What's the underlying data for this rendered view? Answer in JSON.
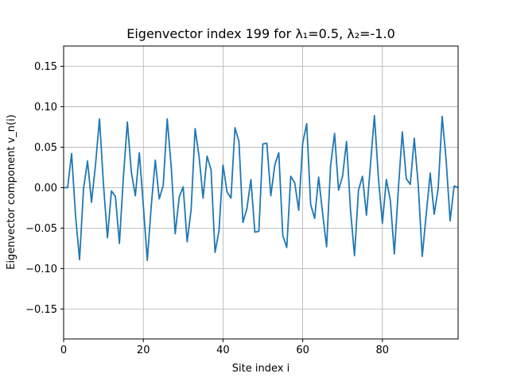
{
  "chart_data": {
    "type": "line",
    "title": "Eigenvector index 199 for λ₁=0.5, λ₂=-1.0",
    "xlabel": "Site index i",
    "ylabel": "Eigenvector component v_n(i)",
    "xlim": [
      0,
      99
    ],
    "ylim": [
      -0.187,
      0.175
    ],
    "xticks": [
      0,
      20,
      40,
      60,
      80
    ],
    "xtick_labels": [
      "0",
      "20",
      "40",
      "60",
      "80"
    ],
    "yticks": [
      -0.15,
      -0.1,
      -0.05,
      0.0,
      0.05,
      0.1,
      0.15
    ],
    "ytick_labels": [
      "−0.15",
      "−0.10",
      "−0.05",
      "0.00",
      "0.05",
      "0.10",
      "0.15"
    ],
    "grid": true,
    "line_color": "#1f77b4",
    "series": [
      {
        "x": [
          0,
          1,
          2,
          3,
          4,
          5,
          6,
          7,
          8,
          9,
          10,
          11,
          12,
          13,
          14,
          15,
          16,
          17,
          18,
          19,
          20,
          21,
          22,
          23,
          24,
          25,
          26,
          27,
          28,
          29,
          30,
          31,
          32,
          33,
          34,
          35,
          36,
          37,
          38,
          39,
          40,
          41,
          42,
          43,
          44,
          45,
          46,
          47,
          48,
          49,
          50,
          51,
          52,
          53,
          54,
          55,
          56,
          57,
          58,
          59,
          60,
          61,
          62,
          63,
          64,
          65,
          66,
          67,
          68,
          69,
          70,
          71,
          72,
          73,
          74,
          75,
          76,
          77,
          78,
          79,
          80,
          81,
          82,
          83,
          84,
          85,
          86,
          87,
          88,
          89,
          90,
          91,
          92,
          93,
          94,
          95,
          96,
          97,
          98,
          99
        ],
        "values": [
          0.0,
          0.0,
          0.042,
          -0.035,
          -0.089,
          -0.001,
          0.033,
          -0.018,
          0.028,
          0.085,
          0.004,
          -0.062,
          -0.004,
          -0.011,
          -0.069,
          0.013,
          0.081,
          0.019,
          -0.01,
          0.043,
          -0.022,
          -0.09,
          -0.022,
          0.034,
          -0.014,
          0.003,
          0.085,
          0.026,
          -0.057,
          -0.012,
          0.001,
          -0.067,
          -0.027,
          0.073,
          0.038,
          -0.013,
          0.039,
          0.022,
          -0.08,
          -0.053,
          0.028,
          -0.005,
          -0.013,
          0.074,
          0.057,
          -0.043,
          -0.026,
          0.01,
          -0.055,
          -0.054,
          0.054,
          0.055,
          -0.01,
          0.028,
          0.043,
          -0.059,
          -0.074,
          0.014,
          0.006,
          -0.028,
          0.055,
          0.079,
          -0.021,
          -0.038,
          0.013,
          -0.032,
          -0.073,
          0.027,
          0.067,
          -0.003,
          0.014,
          0.057,
          -0.028,
          -0.084,
          -0.003,
          0.014,
          -0.034,
          0.028,
          0.089,
          0.012,
          -0.044,
          0.01,
          -0.016,
          -0.082,
          -0.002,
          0.069,
          0.011,
          0.004,
          0.061,
          0.003,
          -0.085,
          -0.033,
          0.018,
          -0.033,
          -0.001,
          0.088,
          0.034,
          -0.041,
          0.002,
          0.0
        ]
      }
    ]
  }
}
